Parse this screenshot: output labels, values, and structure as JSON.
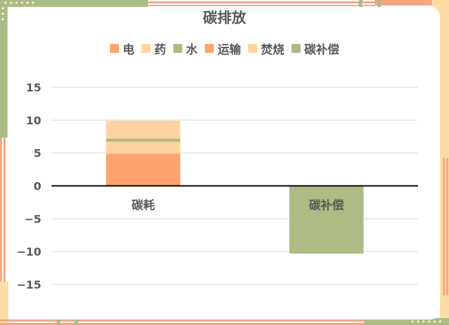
{
  "colors": {
    "orange": "#FFA36E",
    "peach": "#FFD49E",
    "green": "#ADBB84",
    "frame_orange": "#F5A683",
    "frame_cream": "#FFDCA5",
    "grid": "#D9D9D9",
    "axis": "#000000",
    "text": "#595959"
  },
  "chart_data": {
    "type": "bar",
    "stacked": true,
    "title": "碳排放",
    "legend_position": "top",
    "grid": true,
    "categories": [
      "碳耗",
      "碳补偿"
    ],
    "series": [
      {
        "name": "电",
        "values": [
          4.9,
          0
        ],
        "color": "#FFA36E"
      },
      {
        "name": "药",
        "values": [
          1.8,
          0
        ],
        "color": "#FFD49E"
      },
      {
        "name": "水",
        "values": [
          0.5,
          0
        ],
        "color": "#ADBB84"
      },
      {
        "name": "运输",
        "values": [
          0,
          0
        ],
        "color": "#FFA36E"
      },
      {
        "name": "焚烧",
        "values": [
          2.7,
          0
        ],
        "color": "#FFD49E"
      },
      {
        "name": "碳补偿",
        "values": [
          0,
          -10.3
        ],
        "color": "#ADBB84"
      }
    ],
    "yticks": [
      15,
      10,
      5,
      0,
      -5,
      -10,
      -15
    ],
    "ytick_labels": [
      "15",
      "10",
      "5",
      "0",
      "−5",
      "−10",
      "−15"
    ],
    "ylim": [
      -18.5,
      16.5
    ]
  }
}
